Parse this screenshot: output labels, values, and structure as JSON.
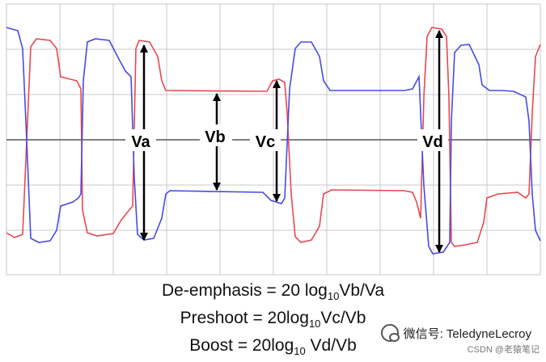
{
  "labels": {
    "va": "Va",
    "vb": "Vb",
    "vc": "Vc",
    "vd": "Vd"
  },
  "formulas": {
    "deemphasis": {
      "prefix": "De-emphasis = 20 log",
      "sub": "10",
      "suffix": "Vb/Va"
    },
    "preshoot": {
      "prefix": "Preshoot = 20log",
      "sub": "10",
      "suffix": "Vc/Vb"
    },
    "boost": {
      "prefix": "Boost = 20log",
      "sub": "10",
      "suffix": " Vd/Vb"
    }
  },
  "watermark": {
    "wechat": "微信号: TeledyneLecroy",
    "csdn": "CSDN @老猿笔记"
  },
  "colors": {
    "red_trace": "#e8484e",
    "blue_trace": "#4a4ae0",
    "grid": "#c8c8c8",
    "axis": "#555555",
    "arrow": "#000000"
  }
}
